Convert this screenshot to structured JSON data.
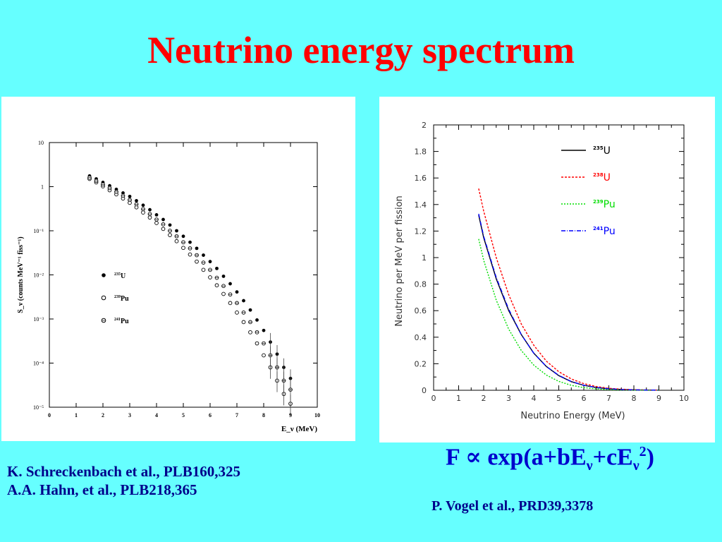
{
  "title": "Neutrino energy spectrum",
  "colors": {
    "background": "#66FFFF",
    "title": "#FF0000",
    "reference": "#00008B",
    "formula": "#0000CC"
  },
  "formula": {
    "prefix": "F ",
    "symbol": "∝",
    "open": " exp(a+bE",
    "nu1": "ν",
    "mid": "+cE",
    "nu2": "ν",
    "exp": "2",
    "close": ")"
  },
  "references_left": [
    "K. Schreckenbach et al., PLB160,325",
    "A.A. Hahn, et al., PLB218,365"
  ],
  "reference_right": "P. Vogel et al., PRD39,3378",
  "chart_data": [
    {
      "type": "scatter",
      "scale": "log-y",
      "ylabel": "S_ν (counts MeV⁻¹ fiss⁻¹)",
      "xlabel": "E_ν (MeV)",
      "xlim": [
        0,
        10
      ],
      "ylim": [
        1e-05,
        10
      ],
      "x_ticks": [
        "0",
        "1",
        "2",
        "3",
        "4",
        "5",
        "6",
        "7",
        "8",
        "9",
        "10"
      ],
      "y_ticks": [
        {
          "value": 10,
          "label": "10"
        },
        {
          "value": 1,
          "label": "1"
        },
        {
          "value": 0.1,
          "label": "10⁻¹"
        },
        {
          "value": 0.01,
          "label": "10⁻²"
        },
        {
          "value": 0.001,
          "label": "10⁻³"
        },
        {
          "value": 0.0001,
          "label": "10⁻⁴"
        },
        {
          "value": 1e-05,
          "label": "10⁻⁵"
        }
      ],
      "x": [
        1.5,
        1.75,
        2.0,
        2.25,
        2.5,
        2.75,
        3.0,
        3.25,
        3.5,
        3.75,
        4.0,
        4.25,
        4.5,
        4.75,
        5.0,
        5.25,
        5.5,
        5.75,
        6.0,
        6.25,
        6.5,
        6.75,
        7.0,
        7.25,
        7.5,
        7.75,
        8.0,
        8.25,
        8.5,
        8.75,
        9.0
      ],
      "series": [
        {
          "name": "235U",
          "sup": "235",
          "label": "U",
          "marker": "filled",
          "values": [
            1.75,
            1.5,
            1.25,
            1.05,
            0.87,
            0.72,
            0.6,
            0.48,
            0.38,
            0.3,
            0.23,
            0.18,
            0.135,
            0.1,
            0.075,
            0.055,
            0.04,
            0.028,
            0.02,
            0.014,
            0.0093,
            0.0063,
            0.0041,
            0.0026,
            0.0016,
            0.00095,
            0.00055,
            0.0003,
            0.00016,
            8e-05,
            4.5e-05
          ]
        },
        {
          "name": "239Pu",
          "sup": "239",
          "label": "Pu",
          "marker": "open",
          "values": [
            1.5,
            1.25,
            1.02,
            0.83,
            0.67,
            0.54,
            0.43,
            0.34,
            0.26,
            0.2,
            0.15,
            0.11,
            0.08,
            0.058,
            0.041,
            0.029,
            0.02,
            0.013,
            0.0088,
            0.0058,
            0.0037,
            0.0023,
            0.0014,
            0.00085,
            0.0005,
            0.00028,
            0.00015,
            8e-05,
            4e-05,
            2e-05,
            1.2e-05
          ]
        },
        {
          "name": "241Pu",
          "sup": "241",
          "label": "Pu",
          "marker": "open-cross",
          "values": [
            1.6,
            1.35,
            1.12,
            0.93,
            0.76,
            0.62,
            0.5,
            0.4,
            0.31,
            0.24,
            0.18,
            0.14,
            0.1,
            0.075,
            0.055,
            0.04,
            0.028,
            0.019,
            0.013,
            0.0086,
            0.0056,
            0.0036,
            0.0023,
            0.0014,
            0.00085,
            0.0005,
            0.00028,
            0.00015,
            8e-05,
            4e-05,
            2.5e-05
          ]
        }
      ]
    },
    {
      "type": "line",
      "xlabel": "Neutrino Energy (MeV)",
      "ylabel": "Neutrino per MeV per fission",
      "xlim": [
        0,
        10
      ],
      "ylim": [
        0,
        2
      ],
      "x_ticks": [
        "0",
        "1",
        "2",
        "3",
        "4",
        "5",
        "6",
        "7",
        "8",
        "9",
        "10"
      ],
      "y_ticks": [
        "0",
        "0.2",
        "0.4",
        "0.6",
        "0.8",
        "1",
        "1.2",
        "1.4",
        "1.6",
        "1.8",
        "2"
      ],
      "x": [
        1.8,
        2.0,
        2.5,
        3.0,
        3.5,
        4.0,
        4.5,
        5.0,
        5.5,
        6.0,
        6.5,
        7.0,
        7.5,
        8.0,
        8.5,
        9.0
      ],
      "series": [
        {
          "name": "235U",
          "sup": "235",
          "label": "U",
          "color": "#000000",
          "dash": "",
          "values": [
            1.32,
            1.15,
            0.84,
            0.6,
            0.42,
            0.28,
            0.18,
            0.11,
            0.065,
            0.037,
            0.02,
            0.011,
            0.006,
            0.003,
            0.0015,
            0.0008
          ]
        },
        {
          "name": "238U",
          "sup": "238",
          "label": "U",
          "color": "#FF0000",
          "dash": "3,2",
          "values": [
            1.52,
            1.35,
            1.0,
            0.72,
            0.5,
            0.34,
            0.22,
            0.14,
            0.085,
            0.05,
            0.028,
            0.015,
            0.008,
            0.004,
            0.002,
            0.001
          ]
        },
        {
          "name": "239Pu",
          "sup": "239",
          "label": "Pu",
          "color": "#00DD00",
          "dash": "2,2",
          "values": [
            1.14,
            0.98,
            0.68,
            0.46,
            0.3,
            0.19,
            0.115,
            0.067,
            0.037,
            0.02,
            0.01,
            0.005,
            0.0025,
            0.0012,
            0.0006,
            0.0003
          ]
        },
        {
          "name": "241Pu",
          "sup": "241",
          "label": "Pu",
          "color": "#0000FF",
          "dash": "6,2,1,2",
          "values": [
            1.33,
            1.16,
            0.85,
            0.61,
            0.42,
            0.28,
            0.18,
            0.112,
            0.066,
            0.038,
            0.021,
            0.011,
            0.006,
            0.003,
            0.0015,
            0.0008
          ]
        }
      ]
    }
  ]
}
